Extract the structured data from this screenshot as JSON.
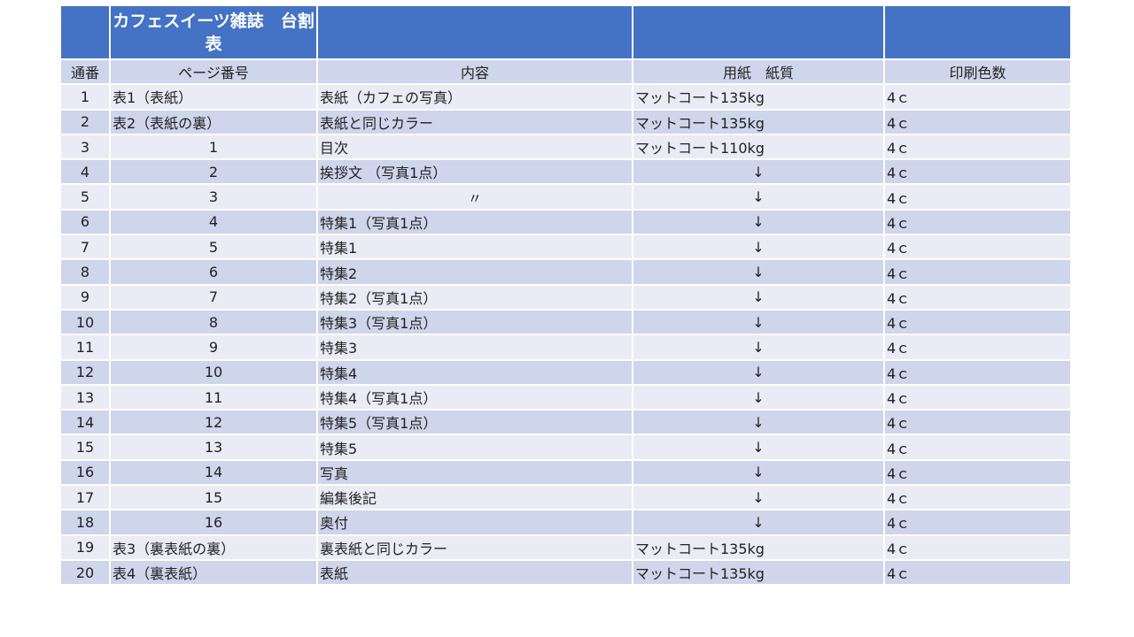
{
  "title": "カフェスイーツ雑誌　台割表",
  "columns": [
    "通番",
    "ページ番号",
    "内容",
    "用紙　紙質",
    "印刷色数"
  ],
  "rows": [
    [
      "1",
      "表1（表紙）",
      "表紙（カフェの写真）",
      "マットコート135kg",
      "4ｃ"
    ],
    [
      "2",
      "表2（表紙の裏）",
      "表紙と同じカラー",
      "マットコート135kg",
      "4ｃ"
    ],
    [
      "3",
      "1",
      "目次",
      "マットコート110kg",
      "4ｃ"
    ],
    [
      "4",
      "2",
      "挨拶文 （写真1点）",
      "↓",
      "4ｃ"
    ],
    [
      "5",
      "3",
      "〃",
      "↓",
      "4ｃ"
    ],
    [
      "6",
      "4",
      "特集1（写真1点）",
      "↓",
      "4ｃ"
    ],
    [
      "7",
      "5",
      "特集1",
      "↓",
      "4ｃ"
    ],
    [
      "8",
      "6",
      "特集2",
      "↓",
      "4ｃ"
    ],
    [
      "9",
      "7",
      "特集2（写真1点）",
      "↓",
      "4ｃ"
    ],
    [
      "10",
      "8",
      "特集3（写真1点）",
      "↓",
      "4ｃ"
    ],
    [
      "11",
      "9",
      "特集3",
      "↓",
      "4ｃ"
    ],
    [
      "12",
      "10",
      "特集4",
      "↓",
      "4ｃ"
    ],
    [
      "13",
      "11",
      "特集4（写真1点）",
      "↓",
      "4ｃ"
    ],
    [
      "14",
      "12",
      "特集5（写真1点）",
      "↓",
      "4ｃ"
    ],
    [
      "15",
      "13",
      "特集5",
      "↓",
      "4ｃ"
    ],
    [
      "16",
      "14",
      "写真",
      "↓",
      "4ｃ"
    ],
    [
      "17",
      "15",
      "編集後記",
      "↓",
      "4ｃ"
    ],
    [
      "18",
      "16",
      "奥付",
      "↓",
      "4ｃ"
    ],
    [
      "19",
      "表3（裏表紙の裏）",
      "裏表紙と同じカラー",
      "マットコート135kg",
      "4ｃ"
    ],
    [
      "20",
      "表4（裏表紙）",
      "表紙",
      "マットコート135kg",
      "4ｃ"
    ]
  ],
  "colors": {
    "header": "#4472C4",
    "row_light": "#E9EBF5",
    "row_dark": "#CFD5EA"
  }
}
